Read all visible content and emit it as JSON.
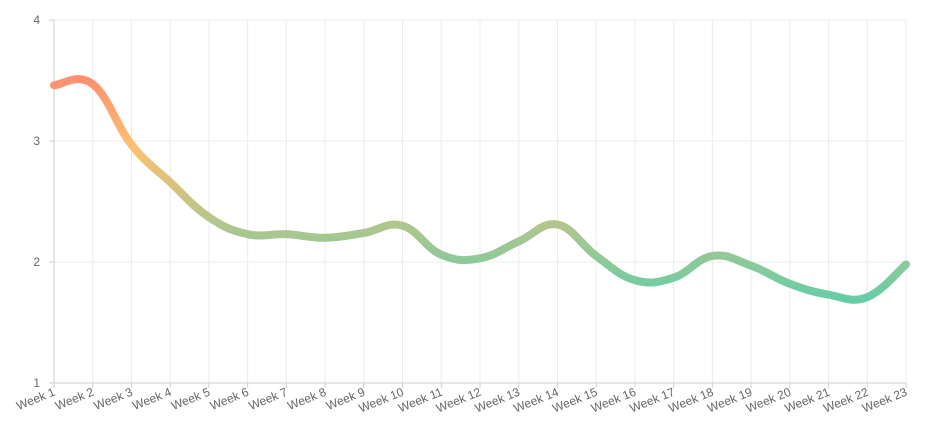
{
  "chart_data": {
    "type": "line",
    "title": "",
    "xlabel": "",
    "ylabel": "",
    "categories": [
      "Week 1",
      "Week 2",
      "Week 3",
      "Week 4",
      "Week 5",
      "Week 6",
      "Week 7",
      "Week 8",
      "Week 9",
      "Week 10",
      "Week 11",
      "Week 12",
      "Week 13",
      "Week 14",
      "Week 15",
      "Week 16",
      "Week 17",
      "Week 18",
      "Week 19",
      "Week 20",
      "Week 21",
      "Week 22",
      "Week 23"
    ],
    "series": [
      {
        "values": [
          3.46,
          3.47,
          2.97,
          2.66,
          2.37,
          2.23,
          2.23,
          2.2,
          2.24,
          2.3,
          2.06,
          2.03,
          2.17,
          2.31,
          2.05,
          1.85,
          1.87,
          2.05,
          1.97,
          1.82,
          1.73,
          1.71,
          1.98
        ]
      }
    ],
    "ylim": [
      1,
      4
    ],
    "yticks": [
      "1",
      "2",
      "3",
      "4"
    ],
    "grid": true,
    "legend": "none",
    "colors": {
      "line_start": "#fb8b73",
      "line_mid": "#fdc070",
      "line_end": "#5dcdab",
      "grid": "#ececec",
      "tick_text": "#666666"
    }
  }
}
